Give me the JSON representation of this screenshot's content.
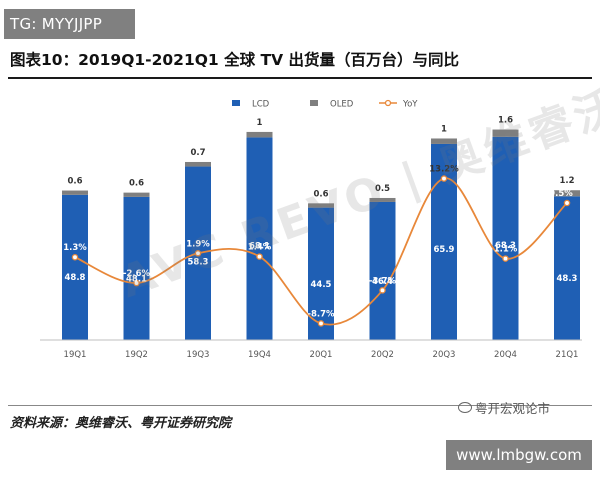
{
  "header": {
    "tg_badge": "TG: MYYJJPP",
    "title": "图表10：2019Q1-2021Q1 全球 TV 出货量（百万台）与同比"
  },
  "footer": {
    "source": "资料来源：奥维睿沃、粤开证券研究院",
    "wechat_label": "粤开宏观论市",
    "site_badge": "www.lmbgw.com"
  },
  "watermark": "AVC REVO | 奥维睿沃",
  "chart_data": {
    "type": "bar",
    "stacked": true,
    "categories": [
      "19Q1",
      "19Q2",
      "19Q3",
      "19Q4",
      "20Q1",
      "20Q2",
      "20Q3",
      "20Q4",
      "21Q1"
    ],
    "series": [
      {
        "name": "LCD",
        "values": [
          48.8,
          48.1,
          58.3,
          68.1,
          44.5,
          46.4,
          65.9,
          68.3,
          48.3
        ],
        "color": "#1f5fb4"
      },
      {
        "name": "OLED",
        "values": [
          0.6,
          0.6,
          0.7,
          1.0,
          0.6,
          0.5,
          1.0,
          1.6,
          1.2
        ],
        "color": "#7f7f7f"
      }
    ],
    "line_series": {
      "name": "YoY",
      "values": [
        1.3,
        -2.6,
        1.9,
        1.4,
        -8.7,
        -3.7,
        13.2,
        1.1,
        9.5
      ],
      "labels": [
        "1.3%",
        "-2.6%",
        "1.9%",
        "1.4%",
        "-8.7%",
        "-3.7%",
        "13.2%",
        "1.1%",
        "9.5%"
      ],
      "color": "#e8883a",
      "axis": "secondary",
      "ylim": [
        -10,
        16
      ]
    },
    "ylim": [
      0,
      80
    ],
    "legend_position": "top",
    "grid": false
  }
}
